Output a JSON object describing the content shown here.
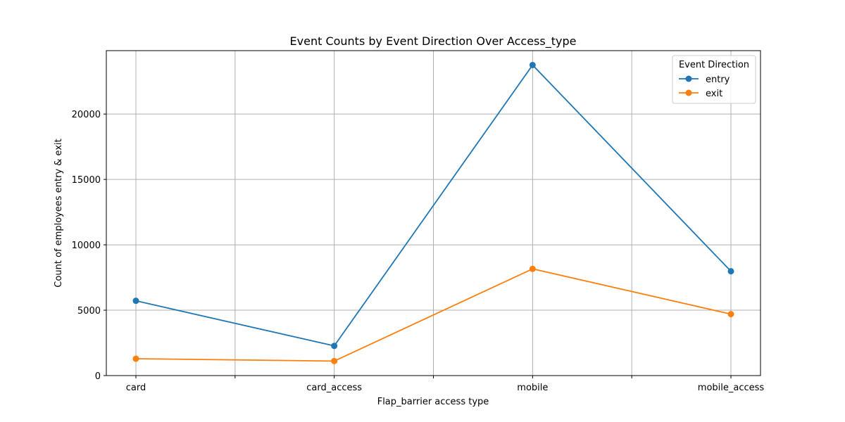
{
  "chart_data": {
    "type": "line",
    "title": "Event Counts by Event Direction Over Access_type",
    "xlabel": "Flap_barrier access type",
    "ylabel": "Count of employees entry & exit",
    "categories": [
      "card",
      "card_access",
      "mobile",
      "mobile_access"
    ],
    "series": [
      {
        "name": "entry",
        "color": "#1f77b4",
        "values": [
          5720,
          2270,
          23750,
          7980
        ]
      },
      {
        "name": "exit",
        "color": "#ff7f0e",
        "values": [
          1290,
          1110,
          8160,
          4700
        ]
      }
    ],
    "ylim": [
      0,
      24850
    ],
    "yticks": [
      0,
      5000,
      10000,
      15000,
      20000
    ],
    "grid": true,
    "legend": {
      "title": "Event Direction",
      "position": "top-right"
    }
  }
}
